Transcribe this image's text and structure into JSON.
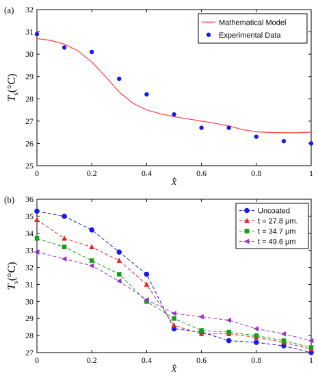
{
  "chart_data": [
    {
      "type": "line",
      "panel_label": "(a)",
      "xlabel": "x̂",
      "ylabel": "T_s(°C)",
      "xlim": [
        0,
        1
      ],
      "ylim": [
        25,
        32
      ],
      "xticks": [
        "0",
        "0.2",
        "0.4",
        "0.6",
        "0.8",
        "1"
      ],
      "yticks": [
        "25",
        "26",
        "27",
        "28",
        "29",
        "30",
        "31",
        "32"
      ],
      "legend_position": "top-right",
      "series": [
        {
          "name": "Mathematical Model",
          "style": "line",
          "color": "#ff4a4a",
          "x": [
            0,
            0.05,
            0.1,
            0.15,
            0.2,
            0.25,
            0.3,
            0.35,
            0.4,
            0.45,
            0.5,
            0.55,
            0.6,
            0.65,
            0.7,
            0.75,
            0.8,
            0.85,
            0.9,
            0.95,
            1.0
          ],
          "y": [
            30.7,
            30.62,
            30.45,
            30.15,
            29.65,
            29.0,
            28.3,
            27.8,
            27.5,
            27.33,
            27.2,
            27.1,
            27.0,
            26.9,
            26.78,
            26.62,
            26.52,
            26.49,
            26.48,
            26.48,
            26.5
          ]
        },
        {
          "name": "Experimental Data",
          "style": "markers",
          "color": "#1a1ae6",
          "x": [
            0,
            0.1,
            0.2,
            0.3,
            0.4,
            0.5,
            0.6,
            0.7,
            0.8,
            0.9,
            1.0
          ],
          "y": [
            30.9,
            30.3,
            30.1,
            28.9,
            28.2,
            27.3,
            26.7,
            26.7,
            26.3,
            26.1,
            26.0
          ]
        }
      ]
    },
    {
      "type": "line",
      "panel_label": "(b)",
      "xlabel": "x̂",
      "ylabel": "T_s(°C)",
      "xlim": [
        0,
        1
      ],
      "ylim": [
        27,
        36
      ],
      "xticks": [
        "0",
        "0.2",
        "0.4",
        "0.6",
        "0.8",
        "1"
      ],
      "yticks": [
        "27",
        "28",
        "29",
        "30",
        "31",
        "32",
        "33",
        "34",
        "35",
        "36"
      ],
      "legend_position": "top-right",
      "x": [
        0,
        0.1,
        0.2,
        0.3,
        0.4,
        0.5,
        0.6,
        0.7,
        0.8,
        0.9,
        1.0
      ],
      "series": [
        {
          "name": "Uncoated",
          "marker": "circle",
          "color": "#1a1ae6",
          "y": [
            35.3,
            35.0,
            34.2,
            32.9,
            31.6,
            28.4,
            28.2,
            27.7,
            27.6,
            27.4,
            27.0
          ]
        },
        {
          "name": "t = 27.8 μm.",
          "marker": "triangle",
          "color": "#e62222",
          "y": [
            34.8,
            33.7,
            33.2,
            32.4,
            31.0,
            28.6,
            28.1,
            28.1,
            27.9,
            27.6,
            27.2
          ]
        },
        {
          "name": "t = 34.7 μm",
          "marker": "square",
          "color": "#14a014",
          "y": [
            33.7,
            33.2,
            32.4,
            31.6,
            30.0,
            29.0,
            28.3,
            28.2,
            28.0,
            27.7,
            27.3
          ]
        },
        {
          "name": "t = 49.6 μm",
          "marker": "triangle-left",
          "color": "#9933cc",
          "y": [
            32.9,
            32.5,
            32.1,
            31.2,
            30.1,
            29.3,
            29.1,
            28.9,
            28.4,
            28.1,
            27.7
          ]
        }
      ]
    }
  ]
}
